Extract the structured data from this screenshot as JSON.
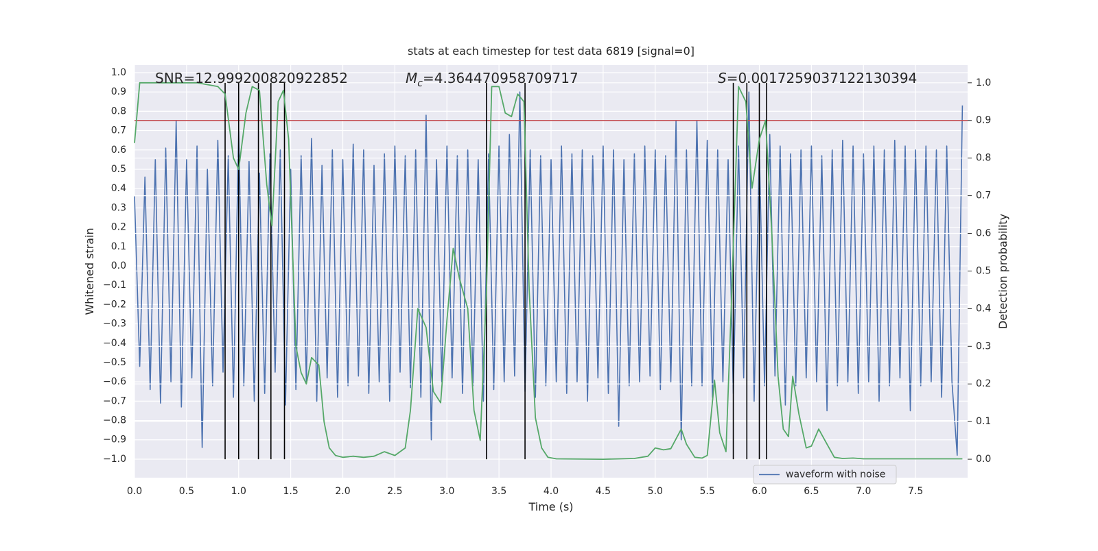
{
  "chart_data": {
    "type": "line",
    "title": "stats at each timestep for test data 6819 [signal=0]",
    "xlabel": "Time (s)",
    "ylabel": "Whitened strain",
    "y2label": "Detection probability",
    "xlim": [
      0,
      8.0
    ],
    "ylim": [
      -1.096,
      1.039
    ],
    "y2lim": [
      -0.049,
      1.047
    ],
    "grid": true,
    "legend": "lower right",
    "xticks": [
      {
        "value": 0,
        "label": "0.0"
      },
      {
        "value": 0.5,
        "label": "0.5"
      },
      {
        "value": 1,
        "label": "1.0"
      },
      {
        "value": 1.5,
        "label": "1.5"
      },
      {
        "value": 2,
        "label": "2.0"
      },
      {
        "value": 2.5,
        "label": "2.5"
      },
      {
        "value": 3,
        "label": "3.0"
      },
      {
        "value": 3.5,
        "label": "3.5"
      },
      {
        "value": 4,
        "label": "4.0"
      },
      {
        "value": 4.5,
        "label": "4.5"
      },
      {
        "value": 5,
        "label": "5.0"
      },
      {
        "value": 5.5,
        "label": "5.5"
      },
      {
        "value": 6,
        "label": "6.0"
      },
      {
        "value": 6.5,
        "label": "6.5"
      },
      {
        "value": 7,
        "label": "7.0"
      },
      {
        "value": 7.5,
        "label": "7.5"
      }
    ],
    "yticks": [
      {
        "value": -1,
        "label": "−1.0"
      },
      {
        "value": -0.9,
        "label": "−0.9"
      },
      {
        "value": -0.8,
        "label": "−0.8"
      },
      {
        "value": -0.7,
        "label": "−0.7"
      },
      {
        "value": -0.6,
        "label": "−0.6"
      },
      {
        "value": -0.5,
        "label": "−0.5"
      },
      {
        "value": -0.4,
        "label": "−0.4"
      },
      {
        "value": -0.3,
        "label": "−0.3"
      },
      {
        "value": -0.2,
        "label": "−0.2"
      },
      {
        "value": -0.1,
        "label": "−0.1"
      },
      {
        "value": 0,
        "label": "0.0"
      },
      {
        "value": 0.1,
        "label": "0.1"
      },
      {
        "value": 0.2,
        "label": "0.2"
      },
      {
        "value": 0.3,
        "label": "0.3"
      },
      {
        "value": 0.4,
        "label": "0.4"
      },
      {
        "value": 0.5,
        "label": "0.5"
      },
      {
        "value": 0.6,
        "label": "0.6"
      },
      {
        "value": 0.7,
        "label": "0.7"
      },
      {
        "value": 0.8,
        "label": "0.8"
      },
      {
        "value": 0.9,
        "label": "0.9"
      },
      {
        "value": 1,
        "label": "1.0"
      }
    ],
    "y2ticks": [
      {
        "value": 0,
        "label": "0.0"
      },
      {
        "value": 0.1,
        "label": "0.1"
      },
      {
        "value": 0.2,
        "label": "0.2"
      },
      {
        "value": 0.3,
        "label": "0.3"
      },
      {
        "value": 0.4,
        "label": "0.4"
      },
      {
        "value": 0.5,
        "label": "0.5"
      },
      {
        "value": 0.6,
        "label": "0.6"
      },
      {
        "value": 0.7,
        "label": "0.7"
      },
      {
        "value": 0.8,
        "label": "0.8"
      },
      {
        "value": 0.9,
        "label": "0.9"
      },
      {
        "value": 1,
        "label": "1.0"
      }
    ],
    "series": [
      {
        "name": "waveform with noise",
        "color": "#4c72b0",
        "x": [
          0,
          0.05,
          0.1,
          0.15,
          0.2,
          0.25,
          0.3,
          0.35,
          0.4,
          0.45,
          0.5,
          0.55,
          0.6,
          0.65,
          0.7,
          0.75,
          0.8,
          0.85,
          0.9,
          0.95,
          1,
          1.05,
          1.1,
          1.15,
          1.2,
          1.25,
          1.3,
          1.35,
          1.4,
          1.45,
          1.5,
          1.55,
          1.6,
          1.65,
          1.7,
          1.75,
          1.8,
          1.85,
          1.9,
          1.95,
          2,
          2.05,
          2.1,
          2.15,
          2.2,
          2.25,
          2.3,
          2.35,
          2.4,
          2.45,
          2.5,
          2.55,
          2.6,
          2.65,
          2.7,
          2.75,
          2.8,
          2.85,
          2.9,
          2.95,
          3,
          3.05,
          3.1,
          3.15,
          3.2,
          3.25,
          3.3,
          3.35,
          3.4,
          3.45,
          3.5,
          3.55,
          3.6,
          3.65,
          3.7,
          3.75,
          3.8,
          3.85,
          3.9,
          3.95,
          4,
          4.05,
          4.1,
          4.15,
          4.2,
          4.25,
          4.3,
          4.35,
          4.4,
          4.45,
          4.5,
          4.55,
          4.6,
          4.65,
          4.7,
          4.75,
          4.8,
          4.85,
          4.9,
          4.95,
          5,
          5.05,
          5.1,
          5.15,
          5.2,
          5.25,
          5.3,
          5.35,
          5.4,
          5.45,
          5.5,
          5.55,
          5.6,
          5.65,
          5.7,
          5.75,
          5.8,
          5.85,
          5.9,
          5.95,
          6,
          6.05,
          6.1,
          6.15,
          6.2,
          6.25,
          6.3,
          6.35,
          6.4,
          6.45,
          6.5,
          6.55,
          6.6,
          6.65,
          6.7,
          6.75,
          6.8,
          6.85,
          6.9,
          6.95,
          7,
          7.05,
          7.1,
          7.15,
          7.2,
          7.25,
          7.3,
          7.35,
          7.4,
          7.45,
          7.5,
          7.55,
          7.6,
          7.65,
          7.7,
          7.75,
          7.8,
          7.85,
          7.9,
          7.95
        ],
        "values": [
          0.36,
          -0.52,
          0.46,
          -0.64,
          0.55,
          -0.71,
          0.61,
          -0.6,
          0.75,
          -0.73,
          0.55,
          -0.58,
          0.62,
          -0.94,
          0.5,
          -0.62,
          0.65,
          -0.55,
          0.57,
          -0.68,
          0.7,
          -0.62,
          0.54,
          -0.7,
          0.48,
          -0.66,
          0.58,
          -0.55,
          0.6,
          -0.72,
          0.5,
          -0.64,
          0.57,
          -0.6,
          0.66,
          -0.7,
          0.52,
          -0.58,
          0.6,
          -0.68,
          0.55,
          -0.62,
          0.63,
          -0.57,
          0.6,
          -0.66,
          0.52,
          -0.6,
          0.58,
          -0.7,
          0.62,
          -0.55,
          0.57,
          -0.63,
          0.6,
          -0.68,
          0.78,
          -0.9,
          0.55,
          -0.6,
          0.62,
          -0.58,
          0.57,
          -0.66,
          0.6,
          -0.62,
          0.55,
          -0.7,
          0.58,
          -0.64,
          0.62,
          -0.6,
          0.68,
          -0.57,
          0.9,
          -0.65,
          0.6,
          -0.68,
          0.57,
          -0.62,
          0.55,
          -0.6,
          0.62,
          -0.66,
          0.58,
          -0.6,
          0.6,
          -0.7,
          0.57,
          -0.58,
          0.62,
          -0.66,
          0.6,
          -0.83,
          0.55,
          -0.62,
          0.58,
          -0.6,
          0.62,
          -0.57,
          0.6,
          -0.64,
          0.57,
          -0.6,
          0.75,
          -0.9,
          0.6,
          -0.62,
          0.75,
          -0.62,
          0.65,
          -0.68,
          0.6,
          -0.6,
          0.55,
          -0.66,
          0.62,
          -0.58,
          0.9,
          -0.7,
          0.6,
          -0.62,
          0.68,
          -0.57,
          0.62,
          -0.72,
          0.58,
          -0.62,
          0.6,
          -0.58,
          0.62,
          -0.6,
          0.57,
          -0.75,
          0.6,
          -0.62,
          0.65,
          -0.6,
          0.62,
          -0.66,
          0.58,
          -0.6,
          0.62,
          -0.7,
          0.6,
          -0.62,
          0.65,
          -0.58,
          0.62,
          -0.75,
          0.6,
          -0.62,
          0.62,
          -0.6,
          0.6,
          -0.68,
          0.62,
          -0.6,
          -0.98,
          0.83
        ]
      },
      {
        "color": "#55a868",
        "axis": "y2",
        "x": [
          0,
          0.05,
          0.1,
          0.6,
          0.8,
          0.87,
          0.95,
          1.0,
          1.07,
          1.13,
          1.2,
          1.27,
          1.32,
          1.38,
          1.43,
          1.48,
          1.55,
          1.6,
          1.65,
          1.7,
          1.77,
          1.82,
          1.87,
          1.93,
          2.0,
          2.1,
          2.2,
          2.3,
          2.4,
          2.5,
          2.6,
          2.65,
          2.72,
          2.8,
          2.87,
          2.94,
          3.0,
          3.06,
          3.12,
          3.2,
          3.26,
          3.32,
          3.38,
          3.43,
          3.5,
          3.56,
          3.62,
          3.68,
          3.74,
          3.79,
          3.85,
          3.91,
          3.97,
          4.05,
          4.5,
          4.8,
          4.93,
          5.0,
          5.08,
          5.15,
          5.25,
          5.3,
          5.38,
          5.45,
          5.5,
          5.57,
          5.62,
          5.68,
          5.73,
          5.8,
          5.87,
          5.93,
          6.0,
          6.06,
          6.12,
          6.18,
          6.23,
          6.28,
          6.32,
          6.38,
          6.45,
          6.5,
          6.57,
          6.65,
          6.72,
          6.8,
          6.9,
          7.0,
          7.5,
          7.7,
          7.95
        ],
        "values": [
          0.84,
          1.0,
          1.0,
          1.0,
          0.99,
          0.97,
          0.8,
          0.77,
          0.92,
          0.99,
          0.98,
          0.73,
          0.62,
          0.95,
          0.98,
          0.85,
          0.3,
          0.23,
          0.2,
          0.27,
          0.25,
          0.1,
          0.03,
          0.01,
          0.005,
          0.008,
          0.005,
          0.008,
          0.02,
          0.01,
          0.03,
          0.13,
          0.4,
          0.35,
          0.18,
          0.15,
          0.37,
          0.56,
          0.48,
          0.4,
          0.13,
          0.05,
          0.45,
          0.99,
          0.99,
          0.92,
          0.91,
          0.97,
          0.95,
          0.45,
          0.11,
          0.03,
          0.005,
          0.001,
          0.0,
          0.002,
          0.008,
          0.03,
          0.025,
          0.028,
          0.08,
          0.04,
          0.005,
          0.003,
          0.01,
          0.21,
          0.07,
          0.02,
          0.4,
          0.99,
          0.95,
          0.72,
          0.85,
          0.9,
          0.6,
          0.22,
          0.08,
          0.06,
          0.22,
          0.12,
          0.03,
          0.035,
          0.08,
          0.04,
          0.005,
          0.002,
          0.003,
          0.001,
          0.001,
          0.001,
          0.001
        ]
      }
    ],
    "vlines": [
      0.87,
      1.0,
      1.19,
      1.31,
      1.44,
      3.38,
      3.75,
      5.75,
      5.88,
      6.0,
      6.07
    ],
    "vline_color": "#000000",
    "threshold": {
      "y2": 0.9,
      "color": "#c44e52"
    },
    "annotations": [
      {
        "text": "SNR=12.999200820922852"
      },
      {
        "symbol": "M",
        "subscript": "c",
        "text": "=4.364470958709717"
      },
      {
        "symbol": "S",
        "text": "=0.0017259037122130394"
      }
    ]
  }
}
